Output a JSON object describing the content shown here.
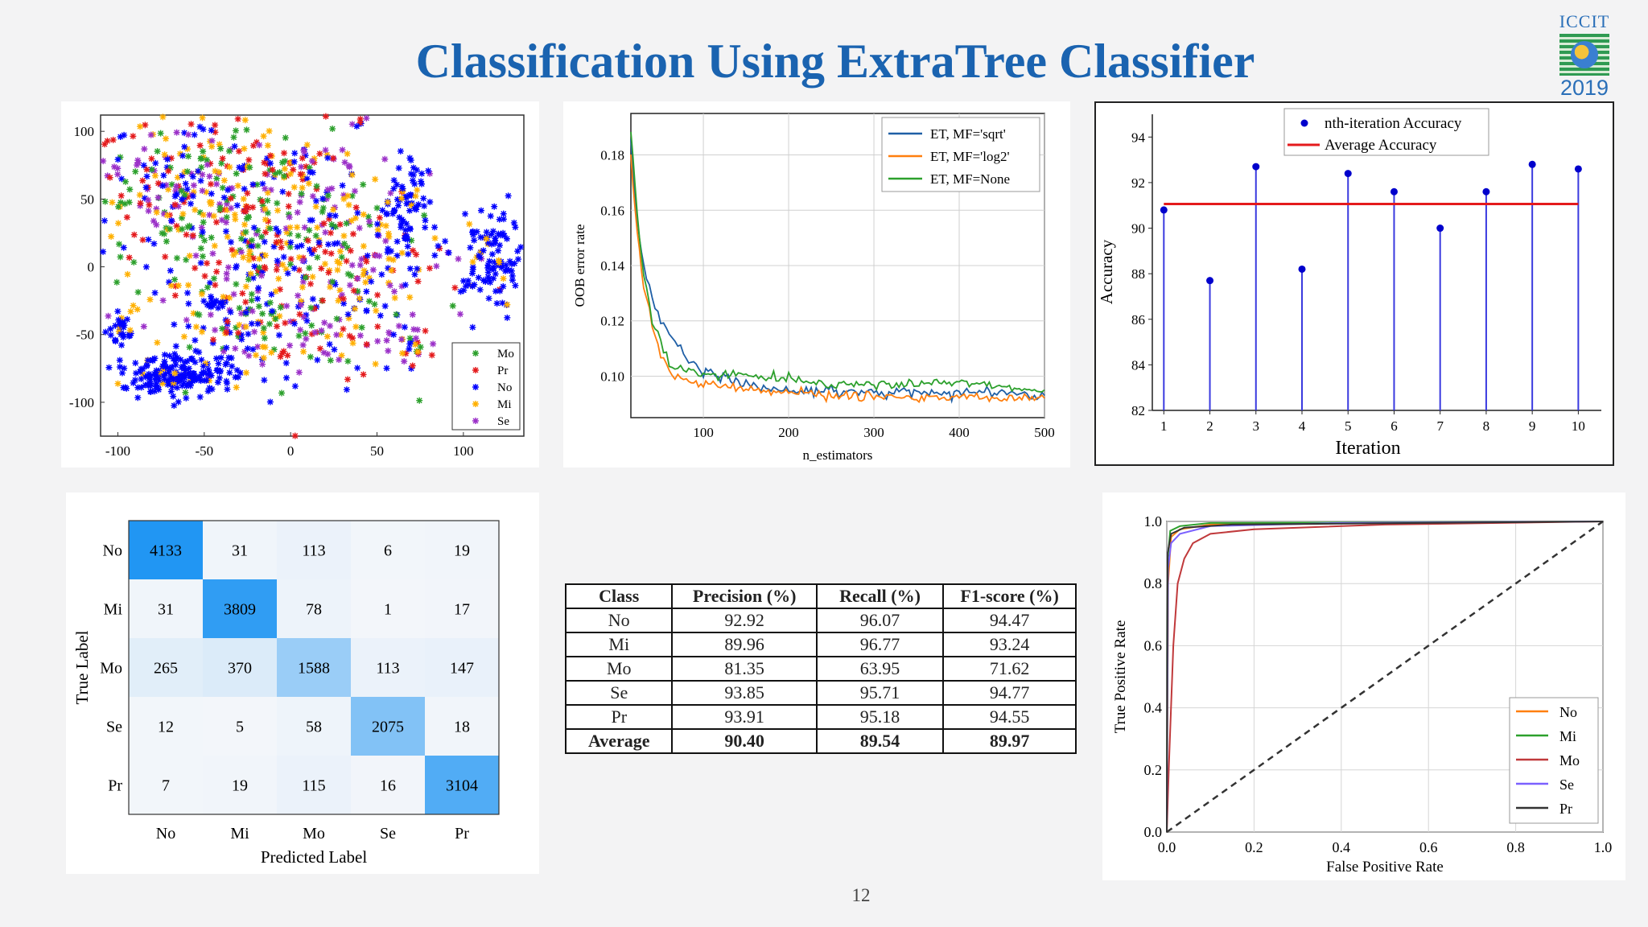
{
  "title": "Classification Using ExtraTree Classifier",
  "logo": {
    "top_text": "ICCIT",
    "bottom_text": "2019"
  },
  "page_number": "12",
  "colors": {
    "title": "#1a63b0",
    "blue": "#0000ff",
    "cm_dark": "#2196f3",
    "red": "#e41a1c"
  },
  "chart_data": [
    {
      "type": "scatter",
      "xlim": [
        -110,
        135
      ],
      "ylim": [
        -125,
        112
      ],
      "x_ticks": [
        "-100",
        "-50",
        "0",
        "50",
        "100"
      ],
      "y_ticks": [
        "100",
        "50",
        "0",
        "-50",
        "-100"
      ],
      "legend": [
        "Mo",
        "Pr",
        "No",
        "Mi",
        "Se"
      ],
      "legend_placement": "bottom-right",
      "series_colors": [
        "#2ca02c",
        "#e41a1c",
        "#0000ff",
        "#ffb000",
        "#9b30c8"
      ],
      "clusters": [
        {
          "kind": "mixed",
          "cx": -70,
          "cy": 55,
          "sx": 25,
          "sy": 32,
          "n": 240
        },
        {
          "kind": "mixed",
          "cx": -10,
          "cy": 45,
          "sx": 30,
          "sy": 30,
          "n": 220
        },
        {
          "kind": "mixed",
          "cx": 25,
          "cy": -15,
          "sx": 30,
          "sy": 35,
          "n": 260
        },
        {
          "kind": "mixed",
          "cx": -30,
          "cy": -35,
          "sx": 28,
          "sy": 22,
          "n": 160
        },
        {
          "kind": "mixed",
          "cx": 5,
          "cy": 75,
          "sx": 12,
          "sy": 8,
          "n": 40
        },
        {
          "kind": "mixed",
          "cx": 70,
          "cy": -60,
          "sx": 6,
          "sy": 8,
          "n": 25
        },
        {
          "kind": "mixed",
          "cx": 40,
          "cy": 108,
          "sx": 2,
          "sy": 2,
          "n": 6
        },
        {
          "kind": "blue",
          "cx": -65,
          "cy": -80,
          "sx": 18,
          "sy": 8,
          "n": 190
        },
        {
          "kind": "blue",
          "cx": -98,
          "cy": -45,
          "sx": 4,
          "sy": 5,
          "n": 30
        },
        {
          "kind": "blue",
          "cx": 115,
          "cy": 5,
          "sx": 10,
          "sy": 18,
          "n": 110
        },
        {
          "kind": "blue",
          "cx": 67,
          "cy": 40,
          "sx": 8,
          "sy": 20,
          "n": 80
        },
        {
          "kind": "blue",
          "cx": -45,
          "cy": -28,
          "sx": 3,
          "sy": 3,
          "n": 12
        }
      ]
    },
    {
      "type": "line",
      "xlabel": "n_estimators",
      "ylabel": "OOB error rate",
      "xlim": [
        15,
        500
      ],
      "ylim": [
        0.085,
        0.195
      ],
      "x_ticks": [
        100,
        200,
        300,
        400,
        500
      ],
      "y_ticks": [
        0.1,
        0.12,
        0.14,
        0.16,
        0.18
      ],
      "series": [
        {
          "name": "ET, MF='sqrt'",
          "color": "#1f5fa6",
          "points": [
            [
              15,
              0.185
            ],
            [
              20,
              0.165
            ],
            [
              25,
              0.15
            ],
            [
              30,
              0.14
            ],
            [
              40,
              0.128
            ],
            [
              50,
              0.12
            ],
            [
              60,
              0.115
            ],
            [
              70,
              0.111
            ],
            [
              80,
              0.107
            ],
            [
              100,
              0.102
            ],
            [
              120,
              0.1
            ],
            [
              150,
              0.097
            ],
            [
              200,
              0.095
            ],
            [
              250,
              0.094
            ],
            [
              300,
              0.094
            ],
            [
              350,
              0.094
            ],
            [
              400,
              0.094
            ],
            [
              450,
              0.094
            ],
            [
              500,
              0.093
            ]
          ]
        },
        {
          "name": "ET, MF='log2'",
          "color": "#ff7f0e",
          "points": [
            [
              15,
              0.18
            ],
            [
              20,
              0.16
            ],
            [
              25,
              0.145
            ],
            [
              30,
              0.132
            ],
            [
              40,
              0.118
            ],
            [
              50,
              0.108
            ],
            [
              60,
              0.102
            ],
            [
              70,
              0.1
            ],
            [
              80,
              0.098
            ],
            [
              100,
              0.097
            ],
            [
              120,
              0.096
            ],
            [
              150,
              0.095
            ],
            [
              200,
              0.094
            ],
            [
              250,
              0.093
            ],
            [
              300,
              0.093
            ],
            [
              350,
              0.092
            ],
            [
              400,
              0.092
            ],
            [
              450,
              0.092
            ],
            [
              500,
              0.092
            ]
          ]
        },
        {
          "name": "ET, MF=None",
          "color": "#2ca02c",
          "points": [
            [
              15,
              0.19
            ],
            [
              20,
              0.168
            ],
            [
              25,
              0.15
            ],
            [
              30,
              0.137
            ],
            [
              40,
              0.122
            ],
            [
              50,
              0.112
            ],
            [
              60,
              0.105
            ],
            [
              70,
              0.103
            ],
            [
              80,
              0.102
            ],
            [
              100,
              0.101
            ],
            [
              120,
              0.1
            ],
            [
              150,
              0.1
            ],
            [
              200,
              0.099
            ],
            [
              250,
              0.097
            ],
            [
              300,
              0.097
            ],
            [
              350,
              0.097
            ],
            [
              400,
              0.098
            ],
            [
              450,
              0.096
            ],
            [
              500,
              0.095
            ]
          ]
        }
      ]
    },
    {
      "type": "scatter",
      "subtype": "stem",
      "xlabel": "Iteration",
      "ylabel": "Accuracy",
      "xlim": [
        0.75,
        10.5
      ],
      "ylim": [
        82,
        95
      ],
      "x": [
        1,
        2,
        3,
        4,
        5,
        6,
        7,
        8,
        9,
        10
      ],
      "y_ticks": [
        82,
        84,
        86,
        88,
        90,
        92,
        94
      ],
      "series": [
        {
          "name": "nth-iteration Accuracy",
          "values": [
            90.8,
            87.7,
            92.7,
            88.2,
            92.4,
            91.6,
            90.0,
            91.6,
            92.8,
            92.6
          ]
        },
        {
          "name": "Average Accuracy",
          "values": [
            91.06
          ]
        }
      ]
    },
    {
      "type": "heatmap",
      "xlabel": "Predicted Label",
      "ylabel": "True Label",
      "labels": [
        "No",
        "Mi",
        "Mo",
        "Se",
        "Pr"
      ],
      "values": [
        [
          4133,
          31,
          113,
          6,
          19
        ],
        [
          31,
          3809,
          78,
          1,
          17
        ],
        [
          265,
          370,
          1588,
          113,
          147
        ],
        [
          12,
          5,
          58,
          2075,
          18
        ],
        [
          7,
          19,
          115,
          16,
          3104
        ]
      ]
    },
    {
      "type": "table",
      "headers": [
        "Class",
        "Precision (%)",
        "Recall (%)",
        "F1-score (%)"
      ],
      "rows": [
        [
          "No",
          "92.92",
          "96.07",
          "94.47"
        ],
        [
          "Mi",
          "89.96",
          "96.77",
          "93.24"
        ],
        [
          "Mo",
          "81.35",
          "63.95",
          "71.62"
        ],
        [
          "Se",
          "93.85",
          "95.71",
          "94.77"
        ],
        [
          "Pr",
          "93.91",
          "95.18",
          "94.55"
        ]
      ],
      "average": [
        "Average",
        "90.40",
        "89.54",
        "89.97"
      ]
    },
    {
      "type": "line",
      "xlabel": "False Positive Rate",
      "ylabel": "True Positive Rate",
      "xlim": [
        0,
        1
      ],
      "ylim": [
        0,
        1
      ],
      "x_ticks": [
        "0.0",
        "0.2",
        "0.4",
        "0.6",
        "0.8",
        "1.0"
      ],
      "y_ticks": [
        "0.0",
        "0.2",
        "0.4",
        "0.6",
        "0.8",
        "1.0"
      ],
      "legend_placement": "bottom-right",
      "series": [
        {
          "name": "No",
          "color": "#ff7f0e",
          "points": [
            [
              0,
              0
            ],
            [
              0.003,
              0.8
            ],
            [
              0.01,
              0.95
            ],
            [
              0.03,
              0.975
            ],
            [
              0.1,
              0.99
            ],
            [
              0.3,
              0.995
            ],
            [
              1,
              1
            ]
          ]
        },
        {
          "name": "Mi",
          "color": "#2ca02c",
          "points": [
            [
              0,
              0
            ],
            [
              0.002,
              0.88
            ],
            [
              0.008,
              0.97
            ],
            [
              0.03,
              0.985
            ],
            [
              0.1,
              0.995
            ],
            [
              1,
              1
            ]
          ]
        },
        {
          "name": "Mo",
          "color": "#c0393b",
          "points": [
            [
              0,
              0
            ],
            [
              0.005,
              0.22
            ],
            [
              0.015,
              0.6
            ],
            [
              0.025,
              0.8
            ],
            [
              0.04,
              0.88
            ],
            [
              0.06,
              0.93
            ],
            [
              0.1,
              0.96
            ],
            [
              0.2,
              0.975
            ],
            [
              0.5,
              0.99
            ],
            [
              1,
              1
            ]
          ]
        },
        {
          "name": "Se",
          "color": "#7b61ff",
          "points": [
            [
              0,
              0
            ],
            [
              0.003,
              0.85
            ],
            [
              0.01,
              0.93
            ],
            [
              0.03,
              0.96
            ],
            [
              0.1,
              0.985
            ],
            [
              0.4,
              0.995
            ],
            [
              1,
              1
            ]
          ]
        },
        {
          "name": "Pr",
          "color": "#333333",
          "points": [
            [
              0,
              0
            ],
            [
              0.002,
              0.9
            ],
            [
              0.01,
              0.96
            ],
            [
              0.04,
              0.98
            ],
            [
              0.15,
              0.99
            ],
            [
              1,
              1
            ]
          ]
        }
      ]
    }
  ]
}
